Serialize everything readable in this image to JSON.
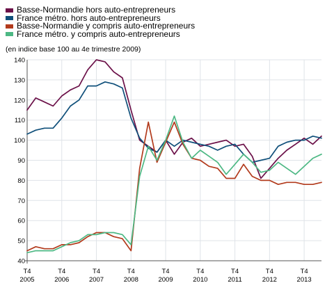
{
  "legend": [
    {
      "label": "Basse-Normandie hors auto-entrepreneurs",
      "color": "#6b1048"
    },
    {
      "label": "France métro. hors auto-entrepreneurs",
      "color": "#0f4f7a"
    },
    {
      "label": "Basse-Normandie y compris auto-entrepreneurs",
      "color": "#b23a1c"
    },
    {
      "label": "France métro. y compris auto-entrepreneurs",
      "color": "#4db884"
    }
  ],
  "subtitle": "(en indice base 100 au 4e trimestre 2009)",
  "chart_data": {
    "type": "line",
    "title": "",
    "xlabel": "",
    "ylabel": "",
    "ylim": [
      40,
      140
    ],
    "yticks": [
      40,
      50,
      60,
      70,
      80,
      90,
      100,
      110,
      120,
      130,
      140
    ],
    "xticks": [
      {
        "index": 0,
        "q": "T4",
        "year": "2005"
      },
      {
        "index": 4,
        "q": "T4",
        "year": "2006"
      },
      {
        "index": 8,
        "q": "T4",
        "year": "2007"
      },
      {
        "index": 12,
        "q": "T4",
        "year": "2008"
      },
      {
        "index": 16,
        "q": "T4",
        "year": "2009"
      },
      {
        "index": 20,
        "q": "T4",
        "year": "2010"
      },
      {
        "index": 24,
        "q": "T4",
        "year": "2011"
      },
      {
        "index": 28,
        "q": "T4",
        "year": "2012"
      },
      {
        "index": 32,
        "q": "T4",
        "year": "2013"
      }
    ],
    "x": [
      "2005-T4",
      "2006-T1",
      "2006-T2",
      "2006-T3",
      "2006-T4",
      "2007-T1",
      "2007-T2",
      "2007-T3",
      "2007-T4",
      "2008-T1",
      "2008-T2",
      "2008-T3",
      "2008-T4",
      "2009-T1",
      "2009-T2",
      "2009-T3",
      "2009-T4",
      "2010-T1",
      "2010-T2",
      "2010-T3",
      "2010-T4",
      "2011-T1",
      "2011-T2",
      "2011-T3",
      "2011-T4",
      "2012-T1",
      "2012-T2",
      "2012-T3",
      "2012-T4",
      "2013-T1",
      "2013-T2",
      "2013-T3",
      "2013-T4",
      "2014-T1",
      "2014-T2"
    ],
    "grid": true,
    "series": [
      {
        "name": "Basse-Normandie hors auto-entrepreneurs",
        "color": "#6b1048",
        "values": [
          115,
          121,
          119,
          117,
          122,
          125,
          127,
          135,
          140,
          139,
          134,
          131,
          115,
          100,
          97,
          94,
          100,
          93,
          99,
          101,
          97,
          98,
          99,
          100,
          97,
          98,
          92,
          81,
          86,
          91,
          95,
          98,
          101,
          98,
          102
        ]
      },
      {
        "name": "France métro. hors auto-entrepreneurs",
        "color": "#0f4f7a",
        "values": [
          103,
          105,
          106,
          106,
          111,
          117,
          120,
          127,
          127,
          129,
          128,
          126,
          111,
          101,
          96,
          94,
          100,
          97,
          100,
          99,
          98,
          97,
          95,
          97,
          98,
          93,
          89,
          90,
          91,
          97,
          99,
          100,
          100,
          102,
          101
        ]
      },
      {
        "name": "Basse-Normandie y compris auto-entrepreneurs",
        "color": "#b23a1c",
        "values": [
          45,
          47,
          46,
          46,
          48,
          48,
          49,
          52,
          54,
          54,
          52,
          51,
          45,
          86,
          109,
          89,
          99,
          109,
          98,
          91,
          90,
          87,
          86,
          81,
          81,
          88,
          82,
          80,
          80,
          78,
          79,
          79,
          78,
          78,
          79
        ]
      },
      {
        "name": "France métro. y compris auto-entrepreneurs",
        "color": "#4db884",
        "values": [
          44,
          45,
          45,
          45,
          47,
          49,
          50,
          53,
          53,
          54,
          54,
          53,
          48,
          82,
          97,
          90,
          100,
          112,
          99,
          91,
          95,
          92,
          89,
          83,
          88,
          93,
          89,
          84,
          85,
          89,
          86,
          83,
          87,
          91,
          93
        ]
      }
    ]
  }
}
